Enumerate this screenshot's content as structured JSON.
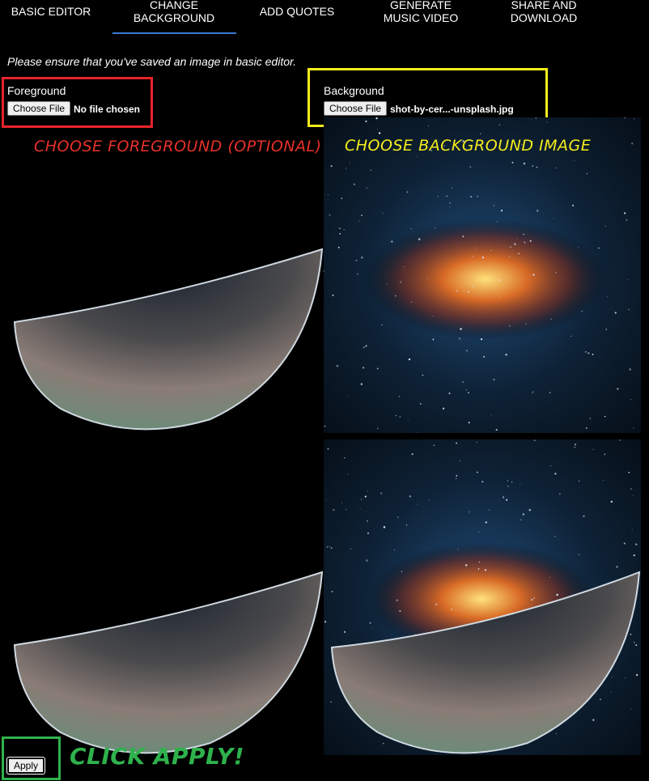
{
  "tabs": [
    "BASIC EDITOR",
    "CHANGE BACKGROUND",
    "ADD QUOTES",
    "GENERATE MUSIC VIDEO",
    "SHARE AND DOWNLOAD"
  ],
  "notice": "Please ensure that you've saved an image in basic editor.",
  "foreground": {
    "label": "Foreground",
    "button": "Choose File",
    "status": "No file chosen",
    "annotation": "CHOOSE FOREGROUND (OPTIONAL)"
  },
  "background": {
    "label": "Background",
    "button": "Choose File",
    "status": "shot-by-cer...-unsplash.jpg",
    "annotation": "CHOOSE BACKGROUND IMAGE"
  },
  "apply": {
    "button": "Apply",
    "annotation": "CLICK APPLY!"
  }
}
